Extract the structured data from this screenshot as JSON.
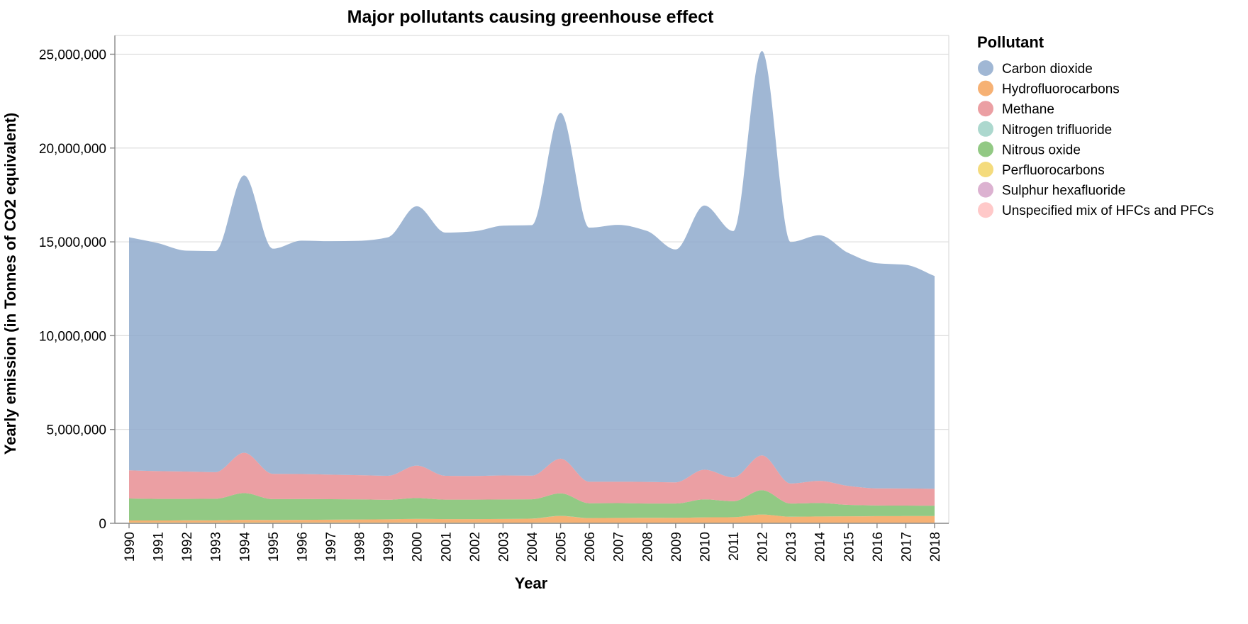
{
  "chart_data": {
    "type": "area",
    "stacked": true,
    "title": "Major pollutants causing greenhouse effect",
    "xlabel": "Year",
    "ylabel": "Yearly emission (in Tonnes of CO2 equivalent)",
    "ylim": [
      0,
      26000000
    ],
    "yticks": [
      0,
      5000000,
      10000000,
      15000000,
      20000000,
      25000000
    ],
    "ytick_labels": [
      "0",
      "5,000,000",
      "10,000,000",
      "15,000,000",
      "20,000,000",
      "25,000,000"
    ],
    "x": [
      "1990",
      "1991",
      "1992",
      "1993",
      "1994",
      "1995",
      "1996",
      "1997",
      "1998",
      "1999",
      "2000",
      "2001",
      "2002",
      "2003",
      "2004",
      "2005",
      "2006",
      "2007",
      "2008",
      "2009",
      "2010",
      "2011",
      "2012",
      "2013",
      "2014",
      "2015",
      "2016",
      "2017",
      "2018"
    ],
    "grid": true,
    "legend": {
      "title": "Pollutant",
      "position": "right"
    },
    "series": [
      {
        "name": "Unspecified mix of HFCs and PFCs",
        "color": "#ffbfbf",
        "values": [
          2000,
          2000,
          2000,
          2000,
          2000,
          2000,
          2000,
          2000,
          2000,
          2000,
          2000,
          2000,
          2000,
          2000,
          2000,
          2000,
          2000,
          2000,
          2000,
          2000,
          2000,
          2000,
          2000,
          2000,
          2000,
          2000,
          2000,
          2000,
          2000
        ]
      },
      {
        "name": "Sulphur hexafluoride",
        "color": "#d6a5c9",
        "values": [
          10000,
          10000,
          10000,
          10000,
          10000,
          10000,
          10000,
          10000,
          10000,
          10000,
          10000,
          10000,
          10000,
          10000,
          10000,
          10000,
          10000,
          10000,
          10000,
          10000,
          10000,
          10000,
          10000,
          10000,
          10000,
          10000,
          10000,
          10000,
          10000
        ]
      },
      {
        "name": "Perfluorocarbons",
        "color": "#f2d566",
        "values": [
          40000,
          38000,
          36000,
          35000,
          40000,
          35000,
          34000,
          33000,
          32000,
          31000,
          33000,
          30000,
          29000,
          28000,
          28000,
          32000,
          25000,
          24000,
          23000,
          22000,
          24000,
          22000,
          26000,
          20000,
          20000,
          19000,
          18000,
          18000,
          17000
        ]
      },
      {
        "name": "Hydrofluorocarbons",
        "color": "#f5a35c",
        "values": [
          100000,
          100000,
          110000,
          110000,
          130000,
          130000,
          140000,
          150000,
          160000,
          170000,
          190000,
          180000,
          180000,
          190000,
          210000,
          350000,
          240000,
          250000,
          260000,
          260000,
          280000,
          290000,
          430000,
          320000,
          330000,
          340000,
          350000,
          355000,
          360000
        ]
      },
      {
        "name": "Nitrogen trifluoride",
        "color": "#9dd1c6",
        "values": [
          500,
          500,
          500,
          500,
          500,
          500,
          500,
          500,
          500,
          500,
          500,
          500,
          500,
          500,
          500,
          500,
          500,
          500,
          500,
          500,
          500,
          500,
          500,
          500,
          500,
          500,
          500,
          500,
          500
        ]
      },
      {
        "name": "Nitrous oxide",
        "color": "#7fbf6f",
        "values": [
          1170000,
          1150000,
          1140000,
          1150000,
          1430000,
          1110000,
          1110000,
          1090000,
          1070000,
          1040000,
          1110000,
          1040000,
          1040000,
          1040000,
          1030000,
          1200000,
          790000,
          790000,
          760000,
          760000,
          960000,
          850000,
          1300000,
          700000,
          720000,
          610000,
          570000,
          560000,
          550000
        ]
      },
      {
        "name": "Methane",
        "color": "#e88e93",
        "values": [
          1500000,
          1480000,
          1460000,
          1420000,
          2150000,
          1350000,
          1330000,
          1310000,
          1290000,
          1280000,
          1730000,
          1270000,
          1260000,
          1280000,
          1260000,
          1850000,
          1150000,
          1140000,
          1150000,
          1130000,
          1580000,
          1270000,
          1850000,
          1070000,
          1180000,
          1010000,
          910000,
          910000,
          900000
        ]
      },
      {
        "name": "Carbon dioxide",
        "color": "#8faacc",
        "values": [
          12420000,
          12150000,
          11770000,
          11780000,
          14780000,
          12000000,
          12440000,
          12440000,
          12490000,
          12710000,
          13820000,
          12960000,
          13040000,
          13310000,
          13350000,
          18430000,
          13540000,
          13690000,
          13380000,
          12410000,
          14080000,
          13130000,
          21550000,
          12870000,
          13090000,
          12420000,
          12000000,
          11920000,
          11340000
        ]
      }
    ],
    "legend_entries": [
      {
        "label": "Carbon dioxide",
        "color": "#8faacc"
      },
      {
        "label": "Hydrofluorocarbons",
        "color": "#f5a35c"
      },
      {
        "label": "Methane",
        "color": "#e88e93"
      },
      {
        "label": "Nitrogen trifluoride",
        "color": "#9dd1c6"
      },
      {
        "label": "Nitrous oxide",
        "color": "#7fbf6f"
      },
      {
        "label": "Perfluorocarbons",
        "color": "#f2d566"
      },
      {
        "label": "Sulphur hexafluoride",
        "color": "#d6a5c9"
      },
      {
        "label": "Unspecified mix of HFCs and PFCs",
        "color": "#ffbfbf"
      }
    ]
  }
}
